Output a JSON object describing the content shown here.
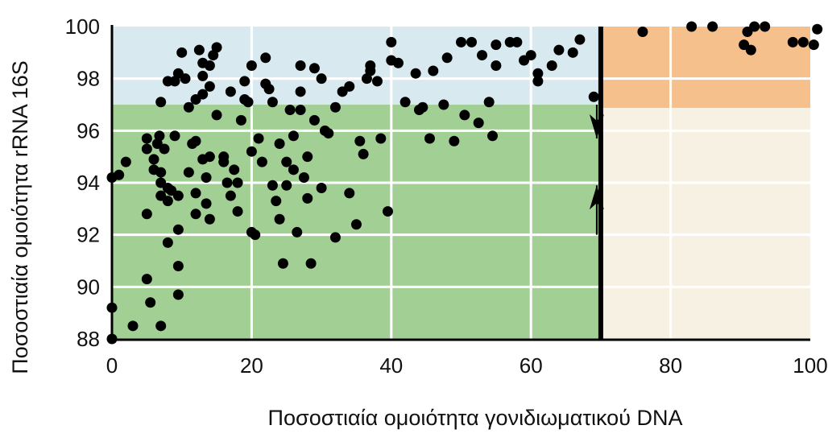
{
  "chart_data": {
    "type": "scatter",
    "xlabel": "Ποσοστιαία ομοιότητα γονιδιωματικού DNA",
    "ylabel": "Ποσοστιαία ομοιότητα rRNA 16S",
    "xlim": [
      0,
      100
    ],
    "ylim": [
      88,
      100
    ],
    "x_ticks": [
      "0",
      "20",
      "40",
      "60",
      "80",
      "100"
    ],
    "y_ticks": [
      "88",
      "90",
      "92",
      "94",
      "96",
      "98",
      "100"
    ],
    "grid": true,
    "regions": {
      "species_threshold_x": 70,
      "species_threshold_y": 97,
      "colors": {
        "below_threshold_low_y": "#a2d094",
        "below_threshold_high_y": "#d8eaf0",
        "above_threshold_low_y": "#f7f1e3",
        "above_threshold_high_y": "#f6c08c",
        "threshold_line": "#000000"
      }
    },
    "arrows": [
      {
        "x": 70,
        "from_y": 97,
        "to_y": 95.7,
        "direction": "down"
      },
      {
        "x": 70,
        "from_y": 92,
        "to_y": 93.9,
        "direction": "up"
      }
    ],
    "points": [
      [
        0,
        88
      ],
      [
        0,
        89.2
      ],
      [
        0,
        94.2
      ],
      [
        1,
        94.3
      ],
      [
        2,
        94.8
      ],
      [
        3,
        88.5
      ],
      [
        5,
        90.3
      ],
      [
        5,
        92.8
      ],
      [
        5,
        95.7
      ],
      [
        5,
        95.3
      ],
      [
        5.5,
        89.4
      ],
      [
        6,
        94.5
      ],
      [
        6,
        94.9
      ],
      [
        6.5,
        95.5
      ],
      [
        6.8,
        95.8
      ],
      [
        7,
        88.5
      ],
      [
        7,
        93.5
      ],
      [
        7,
        94.0
      ],
      [
        7,
        94.4
      ],
      [
        7,
        97.1
      ],
      [
        7.5,
        95.3
      ],
      [
        8,
        91.7
      ],
      [
        8,
        93.8
      ],
      [
        8,
        93.3
      ],
      [
        8,
        97.9
      ],
      [
        8.5,
        93.7
      ],
      [
        9,
        95.8
      ],
      [
        9,
        97.9
      ],
      [
        9.5,
        93.5
      ],
      [
        9.5,
        92.2
      ],
      [
        9.5,
        90.8
      ],
      [
        9.5,
        89.7
      ],
      [
        9.5,
        98.2
      ],
      [
        10,
        99.0
      ],
      [
        10.5,
        98.0
      ],
      [
        11,
        94.4
      ],
      [
        11,
        96.9
      ],
      [
        11.5,
        95.5
      ],
      [
        12,
        93.6
      ],
      [
        12,
        92.8
      ],
      [
        12,
        95.6
      ],
      [
        12,
        97.2
      ],
      [
        12.5,
        99.1
      ],
      [
        13,
        97.4
      ],
      [
        13,
        98.1
      ],
      [
        13,
        98.6
      ],
      [
        13,
        94.9
      ],
      [
        13.5,
        93.2
      ],
      [
        13.5,
        94.2
      ],
      [
        14,
        92.6
      ],
      [
        14,
        95.0
      ],
      [
        14,
        98.5
      ],
      [
        14,
        97.7
      ],
      [
        14.5,
        98.9
      ],
      [
        15,
        99.2
      ],
      [
        15,
        96.6
      ],
      [
        16,
        95.0
      ],
      [
        16,
        94.8
      ],
      [
        16.5,
        94.0
      ],
      [
        17,
        93.5
      ],
      [
        17,
        97.5
      ],
      [
        17.5,
        94.5
      ],
      [
        18,
        92.9
      ],
      [
        18,
        94.0
      ],
      [
        18.5,
        96.4
      ],
      [
        19,
        97.2
      ],
      [
        19,
        97.9
      ],
      [
        19.5,
        97.1
      ],
      [
        20,
        95.2
      ],
      [
        20,
        98.5
      ],
      [
        20,
        92.1
      ],
      [
        20.5,
        92.0
      ],
      [
        21,
        95.7
      ],
      [
        21.5,
        94.8
      ],
      [
        22,
        97.8
      ],
      [
        22,
        98.8
      ],
      [
        22.5,
        97.6
      ],
      [
        23,
        97.1
      ],
      [
        23,
        93.9
      ],
      [
        23.5,
        93.3
      ],
      [
        24,
        95.5
      ],
      [
        24,
        92.6
      ],
      [
        24.5,
        90.9
      ],
      [
        25,
        94.8
      ],
      [
        25,
        93.9
      ],
      [
        25.5,
        96.8
      ],
      [
        26,
        94.5
      ],
      [
        26,
        95.8
      ],
      [
        26.5,
        92.1
      ],
      [
        27,
        98.5
      ],
      [
        27,
        97.5
      ],
      [
        27,
        96.8
      ],
      [
        27.5,
        94.2
      ],
      [
        28,
        95.0
      ],
      [
        28,
        93.4
      ],
      [
        28.5,
        90.9
      ],
      [
        29,
        98.4
      ],
      [
        29,
        96.4
      ],
      [
        30,
        93.8
      ],
      [
        30,
        98.0
      ],
      [
        30.5,
        96.0
      ],
      [
        31,
        95.9
      ],
      [
        32,
        91.9
      ],
      [
        32,
        96.9
      ],
      [
        33,
        97.5
      ],
      [
        34,
        97.7
      ],
      [
        34,
        93.6
      ],
      [
        35,
        92.4
      ],
      [
        35.5,
        95.6
      ],
      [
        36,
        95.1
      ],
      [
        36.5,
        98.0
      ],
      [
        37,
        98.5
      ],
      [
        37,
        98.3
      ],
      [
        38,
        97.9
      ],
      [
        38.5,
        95.7
      ],
      [
        39.5,
        92.9
      ],
      [
        40,
        98.7
      ],
      [
        40,
        99.4
      ],
      [
        41,
        98.6
      ],
      [
        42,
        97.1
      ],
      [
        43.5,
        98.2
      ],
      [
        44,
        96.8
      ],
      [
        44.5,
        96.9
      ],
      [
        45.5,
        95.7
      ],
      [
        46,
        98.3
      ],
      [
        47.5,
        97.0
      ],
      [
        48,
        98.8
      ],
      [
        49,
        95.6
      ],
      [
        50,
        99.4
      ],
      [
        50.5,
        96.6
      ],
      [
        51.5,
        99.4
      ],
      [
        52.5,
        96.3
      ],
      [
        53,
        98.9
      ],
      [
        54,
        97.1
      ],
      [
        54.5,
        95.8
      ],
      [
        55,
        99.3
      ],
      [
        55,
        98.5
      ],
      [
        57,
        99.4
      ],
      [
        58,
        99.4
      ],
      [
        59,
        98.7
      ],
      [
        60,
        98.9
      ],
      [
        61,
        97.9
      ],
      [
        61,
        98.2
      ],
      [
        63,
        98.5
      ],
      [
        64,
        99.1
      ],
      [
        66,
        99.0
      ],
      [
        67,
        99.5
      ],
      [
        69,
        97.3
      ],
      [
        76,
        99.8
      ],
      [
        83,
        100
      ],
      [
        86,
        100
      ],
      [
        90.5,
        99.3
      ],
      [
        91,
        99.8
      ],
      [
        91.5,
        99.1
      ],
      [
        92,
        100
      ],
      [
        93.5,
        100
      ],
      [
        97.5,
        99.4
      ],
      [
        99,
        99.4
      ],
      [
        100.5,
        99.3
      ],
      [
        101,
        99.9
      ]
    ]
  }
}
